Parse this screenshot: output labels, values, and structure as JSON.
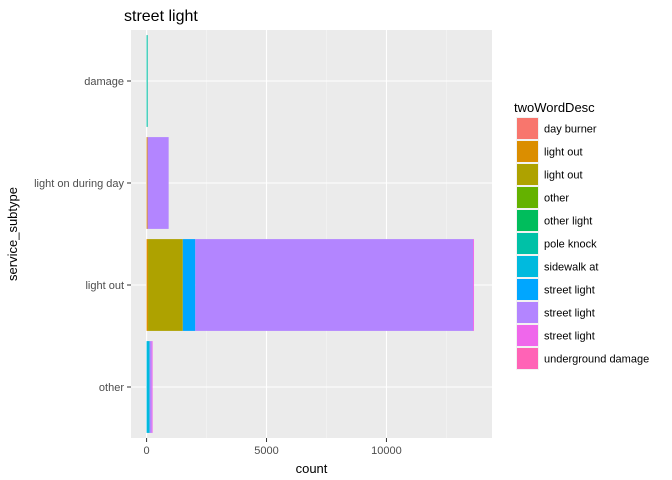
{
  "chart_data": {
    "type": "bar",
    "orientation": "horizontal",
    "stacked": true,
    "title": "street light",
    "xlabel": "count",
    "ylabel": "service_subtype",
    "xlim": [
      -650,
      14400
    ],
    "xticks": [
      0,
      5000,
      10000
    ],
    "xtick_labels": [
      "0",
      "5000",
      "10000"
    ],
    "categories": [
      "other",
      "light out",
      "light on during day",
      "damage"
    ],
    "grid": true,
    "legend_position": "right",
    "legend_title": "twoWordDesc",
    "series": [
      {
        "name": "day burner",
        "color": "#F8766D",
        "values": [
          0,
          0,
          0,
          0
        ]
      },
      {
        "name": "light out",
        "color": "#DB8E00",
        "values": [
          0,
          60,
          40,
          0
        ]
      },
      {
        "name": "light out",
        "color": "#AEA200",
        "values": [
          0,
          1450,
          0,
          0
        ]
      },
      {
        "name": "other",
        "color": "#64B200",
        "values": [
          0,
          0,
          0,
          0
        ]
      },
      {
        "name": "other light",
        "color": "#00BD5C",
        "values": [
          0,
          0,
          0,
          0
        ]
      },
      {
        "name": "pole knock",
        "color": "#00C1A7",
        "values": [
          0,
          0,
          0,
          45
        ]
      },
      {
        "name": "sidewalk  at",
        "color": "#00BADE",
        "values": [
          130,
          0,
          0,
          0
        ]
      },
      {
        "name": "street light",
        "color": "#00A6FF",
        "values": [
          0,
          520,
          0,
          0
        ]
      },
      {
        "name": "street light",
        "color": "#B385FF",
        "values": [
          80,
          11580,
          880,
          0
        ]
      },
      {
        "name": "street light",
        "color": "#EF67EB",
        "values": [
          40,
          40,
          0,
          0
        ]
      },
      {
        "name": "underground damage",
        "color": "#FF63B6",
        "values": [
          0,
          0,
          0,
          0
        ]
      }
    ]
  }
}
